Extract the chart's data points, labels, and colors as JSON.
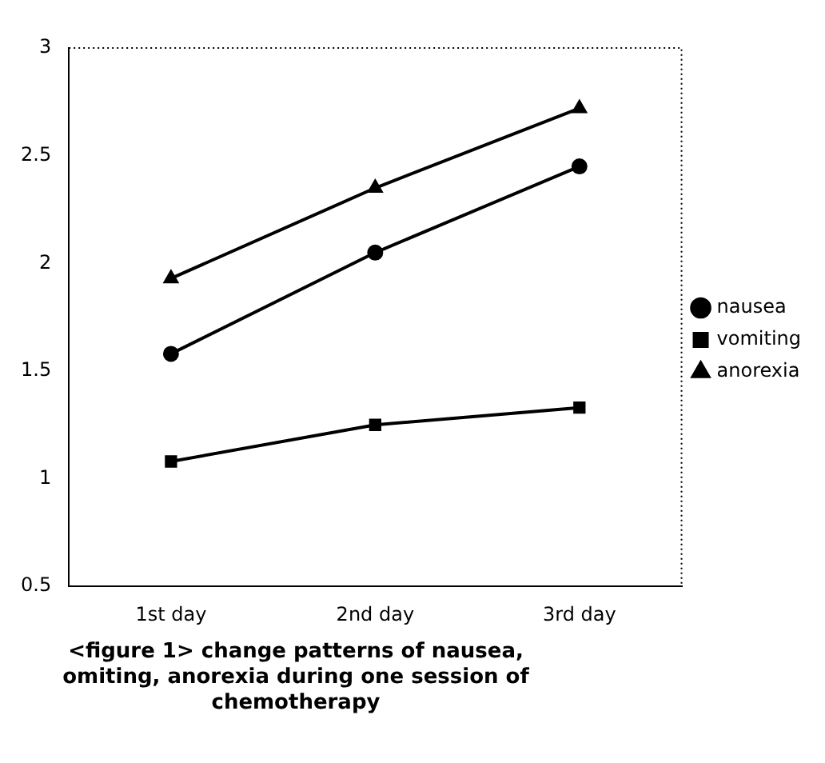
{
  "chart_data": {
    "type": "line",
    "categories": [
      "1st day",
      "2nd day",
      "3rd day"
    ],
    "series": [
      {
        "name": "nausea",
        "color": "#000000",
        "marker": "circle",
        "values": [
          1.58,
          2.05,
          2.45
        ]
      },
      {
        "name": "vomiting",
        "color": "#000000",
        "marker": "square",
        "values": [
          1.08,
          1.25,
          1.33
        ]
      },
      {
        "name": "anorexia",
        "color": "#000000",
        "marker": "triangle",
        "values": [
          1.93,
          2.35,
          2.72
        ]
      }
    ],
    "ylim": [
      0.5,
      3
    ],
    "yticks": [
      0.5,
      1,
      1.5,
      2,
      2.5,
      3
    ],
    "grid": false,
    "legend": "right",
    "line_style": "solid",
    "annotations": [
      "<figure 1> change patterns of nausea, omiting, anorexia during one session of chemotherapy"
    ]
  }
}
